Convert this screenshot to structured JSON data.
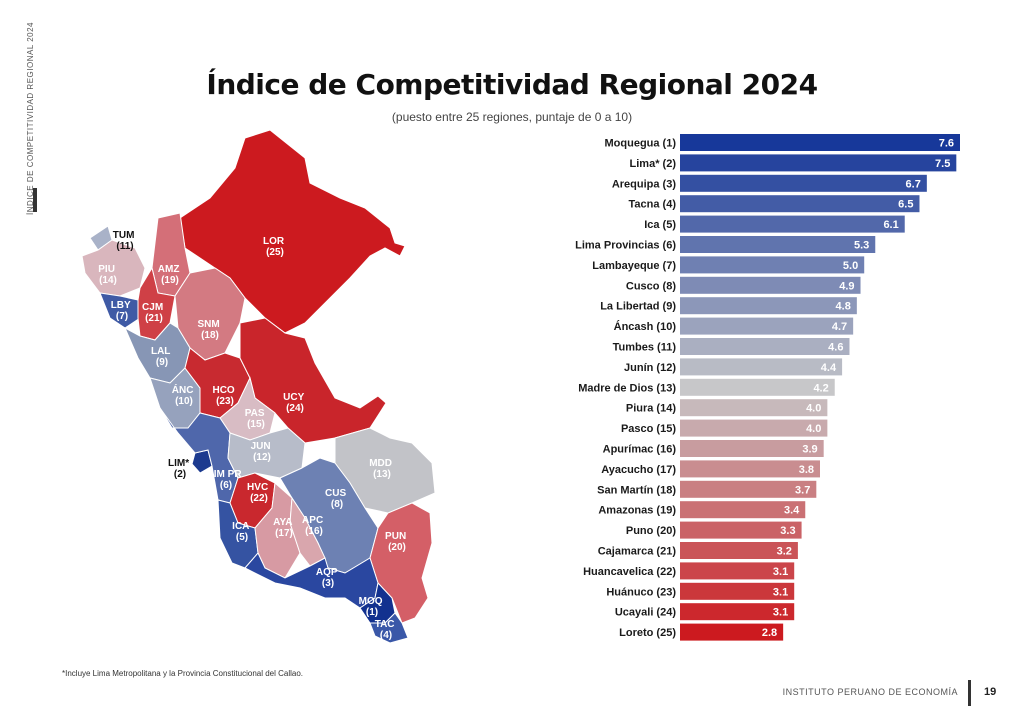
{
  "header": {
    "side_label": "Índice de Competitividad Regional 2024",
    "title": "Índice de Competitividad Regional 2024",
    "subtitle": "(puesto entre 25 regiones, puntaje de 0 a 10)"
  },
  "footer": {
    "footnote": "*Incluye Lima Metropolitana y la Provincia Constitucional del Callao.",
    "organization": "Instituto Peruano de Economía",
    "page_number": "19"
  },
  "colors": {
    "top_rank": "#17389a",
    "middle_rank": "#c7c7c9",
    "bottom_rank": "#cc1a1f"
  },
  "map": {
    "regions": [
      {
        "code": "TUM",
        "rank": "(11)"
      },
      {
        "code": "PIU",
        "rank": "(14)"
      },
      {
        "code": "LBY",
        "rank": "(7)"
      },
      {
        "code": "CJM",
        "rank": "(21)"
      },
      {
        "code": "AMZ",
        "rank": "(19)"
      },
      {
        "code": "LOR",
        "rank": "(25)"
      },
      {
        "code": "SNM",
        "rank": "(18)"
      },
      {
        "code": "LAL",
        "rank": "(9)"
      },
      {
        "code": "ÁNC",
        "rank": "(10)"
      },
      {
        "code": "HCO",
        "rank": "(23)"
      },
      {
        "code": "UCY",
        "rank": "(24)"
      },
      {
        "code": "PAS",
        "rank": "(15)"
      },
      {
        "code": "JUN",
        "rank": "(12)"
      },
      {
        "code": "LIM*",
        "rank": "(2)"
      },
      {
        "code": "LIM PR",
        "rank": "(6)"
      },
      {
        "code": "HVC",
        "rank": "(22)"
      },
      {
        "code": "MDD",
        "rank": "(13)"
      },
      {
        "code": "CUS",
        "rank": "(8)"
      },
      {
        "code": "ICA",
        "rank": "(5)"
      },
      {
        "code": "AYA",
        "rank": "(17)"
      },
      {
        "code": "APC",
        "rank": "(16)"
      },
      {
        "code": "PUN",
        "rank": "(20)"
      },
      {
        "code": "AQP",
        "rank": "(3)"
      },
      {
        "code": "MOQ",
        "rank": "(1)"
      },
      {
        "code": "TAC",
        "rank": "(4)"
      }
    ]
  },
  "chart_data": {
    "type": "bar",
    "orientation": "horizontal",
    "title": "Índice de Competitividad Regional 2024",
    "subtitle": "(puesto entre 25 regiones, puntaje de 0 a 10)",
    "categories": [
      "Moquegua (1)",
      "Lima* (2)",
      "Arequipa (3)",
      "Tacna (4)",
      "Ica (5)",
      "Lima Provincias (6)",
      "Lambayeque (7)",
      "Cusco (8)",
      "La Libertad (9)",
      "Áncash (10)",
      "Tumbes (11)",
      "Junín (12)",
      "Madre de Dios (13)",
      "Piura (14)",
      "Pasco (15)",
      "Apurímac (16)",
      "Ayacucho (17)",
      "San Martín (18)",
      "Amazonas (19)",
      "Puno (20)",
      "Cajamarca (21)",
      "Huancavelica (22)",
      "Huánuco (23)",
      "Ucayali (24)",
      "Loreto (25)"
    ],
    "values": [
      7.6,
      7.5,
      6.7,
      6.5,
      6.1,
      5.3,
      5.0,
      4.9,
      4.8,
      4.7,
      4.6,
      4.4,
      4.2,
      4.0,
      4.0,
      3.9,
      3.8,
      3.7,
      3.4,
      3.3,
      3.2,
      3.1,
      3.1,
      3.1,
      2.8
    ],
    "value_labels": [
      "7.6",
      "7.5",
      "6.7",
      "6.5",
      "6.1",
      "5.3",
      "5.0",
      "4.9",
      "4.8",
      "4.7",
      "4.6",
      "4.4",
      "4.2",
      "4.0",
      "4.0",
      "3.9",
      "3.8",
      "3.7",
      "3.4",
      "3.3",
      "3.2",
      "3.1",
      "3.1",
      "3.1",
      "2.8"
    ],
    "xlim": [
      0,
      7.6
    ],
    "grid": false,
    "legend": "none"
  }
}
